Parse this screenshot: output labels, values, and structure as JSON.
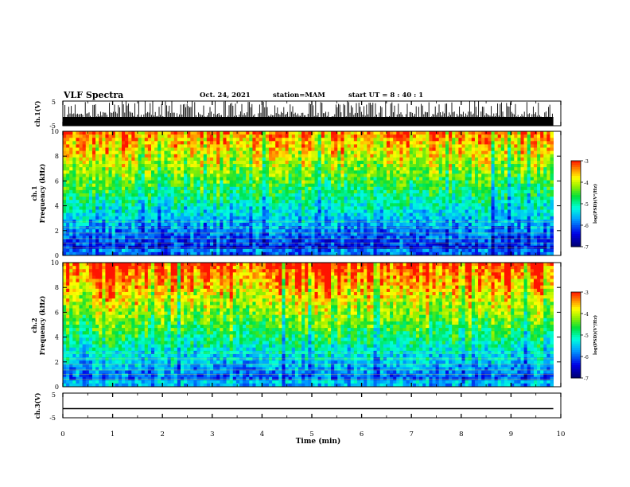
{
  "header": {
    "title": "VLF Spectra",
    "date": "Oct. 24, 2021",
    "station": "station=MAM",
    "start": "start  UT =   8 : 40 : 1"
  },
  "chart_data": [
    {
      "type": "line",
      "panel": "ch1-waveform",
      "ylabel": "ch.1(V)",
      "yticklabels": [
        "5",
        "-5"
      ],
      "ylim": [
        -5,
        5
      ],
      "xlim": [
        0,
        10
      ],
      "note_series": "dense impulsive waveform spanning the full range"
    },
    {
      "type": "heatmap",
      "panel": "ch1-spectrogram",
      "ylabel_line1": "ch.1",
      "ylabel_line2": "Frequency (kHz)",
      "ylim": [
        0,
        10
      ],
      "yticklabels": [
        "0",
        "2",
        "4",
        "6",
        "8",
        "10"
      ],
      "xlim": [
        0,
        9.85
      ],
      "colorbar": {
        "label": "log(PSD)(V²/Hz)",
        "range": [
          -7,
          -3
        ],
        "ticklabels": [
          "-3",
          "-4",
          "-5",
          "-6",
          "-7"
        ]
      }
    },
    {
      "type": "heatmap",
      "panel": "ch2-spectrogram",
      "ylabel_line1": "ch.2",
      "ylabel_line2": "Frequency (kHz)",
      "ylim": [
        0,
        10
      ],
      "yticklabels": [
        "0",
        "2",
        "4",
        "6",
        "8",
        "10"
      ],
      "xlim": [
        0,
        9.85
      ],
      "colorbar": {
        "label": "log(PSD)(V²/Hz)",
        "range": [
          -7,
          -3
        ],
        "ticklabels": [
          "-3",
          "-4",
          "-5",
          "-6",
          "-7"
        ]
      }
    },
    {
      "type": "line",
      "panel": "ch3-waveform",
      "ylabel": "ch.3(V)",
      "yticklabels": [
        "5",
        "-5"
      ],
      "ylim": [
        -5,
        5
      ],
      "xlim": [
        0,
        10
      ],
      "x": [
        0,
        9.85
      ],
      "y": [
        -1.3,
        -1.3
      ]
    }
  ],
  "xaxis": {
    "label": "Time (min)",
    "ticklabels": [
      "0",
      "1",
      "2",
      "3",
      "4",
      "5",
      "6",
      "7",
      "8",
      "9",
      "10"
    ],
    "range": [
      0,
      10
    ]
  },
  "colors": {
    "spec_low": "#0000c8",
    "spec_mid": "#00ffff",
    "spec_green": "#00e000",
    "spec_yellow": "#ffff00",
    "spec_high": "#ff0000",
    "axes": "#000000"
  }
}
